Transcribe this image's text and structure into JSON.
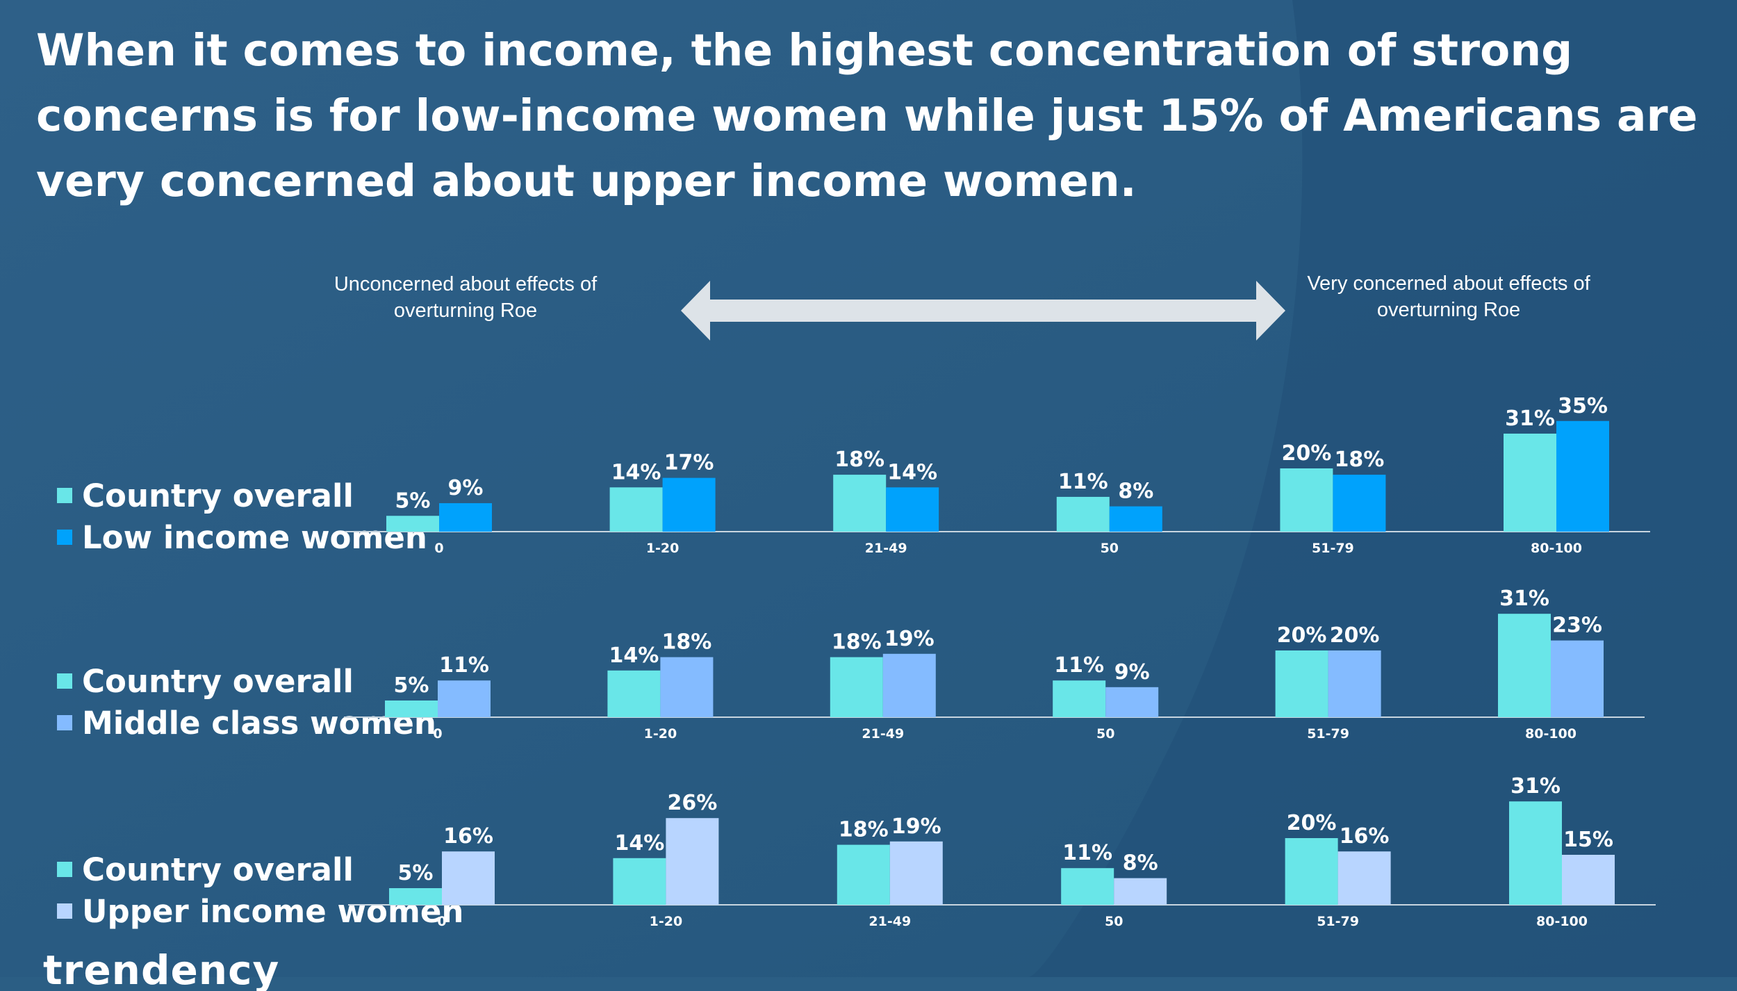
{
  "title": "When it comes to income, the highest concentration of strong concerns is for low-income women while just 15% of Americans are very concerned about upper income women.",
  "scale": {
    "left_label": "Unconcerned about effects of overturning Roe",
    "right_label": "Very concerned about effects of overturning Roe"
  },
  "logo_text": "trendency",
  "colors": {
    "background": "#2b5e84",
    "country_overall": "#69e6e8",
    "low_income_women": "#00a2fc",
    "middle_class_women": "#84bbff",
    "upper_income_women": "#b8d5ff"
  },
  "chart_data": [
    {
      "type": "bar",
      "categories": [
        "0",
        "1-20",
        "21-49",
        "50",
        "51-79",
        "80-100"
      ],
      "series": [
        {
          "name": "Country overall",
          "values": [
            5,
            14,
            18,
            11,
            20,
            31
          ],
          "labels": [
            "5%",
            "14%",
            "18%",
            "11%",
            "20%",
            "31%"
          ],
          "color": "#69e6e8"
        },
        {
          "name": "Low income women",
          "values": [
            9,
            17,
            14,
            8,
            18,
            35
          ],
          "labels": [
            "9%",
            "17%",
            "14%",
            "8%",
            "18%",
            "35%"
          ],
          "color": "#00a2fc"
        }
      ]
    },
    {
      "type": "bar",
      "categories": [
        "0",
        "1-20",
        "21-49",
        "50",
        "51-79",
        "80-100"
      ],
      "series": [
        {
          "name": "Country overall",
          "values": [
            5,
            14,
            18,
            11,
            20,
            31
          ],
          "labels": [
            "5%",
            "14%",
            "18%",
            "11%",
            "20%",
            "31%"
          ],
          "color": "#69e6e8"
        },
        {
          "name": "Middle class women",
          "values": [
            11,
            18,
            19,
            9,
            20,
            23
          ],
          "labels": [
            "11%",
            "18%",
            "19%",
            "9%",
            "20%",
            "23%"
          ],
          "color": "#84bbff"
        }
      ]
    },
    {
      "type": "bar",
      "categories": [
        "0",
        "1-20",
        "21-49",
        "50",
        "51-79",
        "80-100"
      ],
      "series": [
        {
          "name": "Country overall",
          "values": [
            5,
            14,
            18,
            11,
            20,
            31
          ],
          "labels": [
            "5%",
            "14%",
            "18%",
            "11%",
            "20%",
            "31%"
          ],
          "color": "#69e6e8"
        },
        {
          "name": "Upper income women",
          "values": [
            16,
            26,
            19,
            8,
            16,
            15
          ],
          "labels": [
            "16%",
            "26%",
            "19%",
            "8%",
            "16%",
            "15%"
          ],
          "color": "#b8d5ff"
        }
      ]
    }
  ]
}
